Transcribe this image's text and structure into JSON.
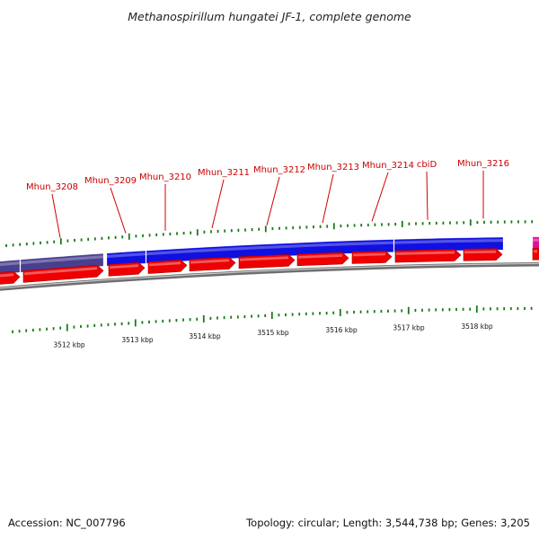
{
  "title": "Methanospirillum hungatei JF-1, complete genome",
  "genes": [
    {
      "name": "Mhun_3208"
    },
    {
      "name": "Mhun_3209"
    },
    {
      "name": "Mhun_3210"
    },
    {
      "name": "Mhun_3211"
    },
    {
      "name": "Mhun_3212"
    },
    {
      "name": "Mhun_3213"
    },
    {
      "name": "Mhun_3214"
    },
    {
      "name": "cbiD"
    },
    {
      "name": "Mhun_3216"
    }
  ],
  "scale_labels": [
    "3512 kbp",
    "3513 kbp",
    "3514 kbp",
    "3515 kbp",
    "3516 kbp",
    "3517 kbp",
    "3518 kbp"
  ],
  "footer": {
    "accession": "Accession: NC_007796",
    "summary": "Topology: circular; Length: 3,544,738 bp; Genes: 3,205"
  },
  "colors": {
    "gene_label": "#cc0000",
    "tick": "#1a7a1a",
    "cds_arrow": "#ee0000",
    "feature_blue": "#1010e0",
    "feature_slate": "#4a3f8f",
    "feature_magenta": "#e0109a",
    "backbone": "#888888"
  }
}
